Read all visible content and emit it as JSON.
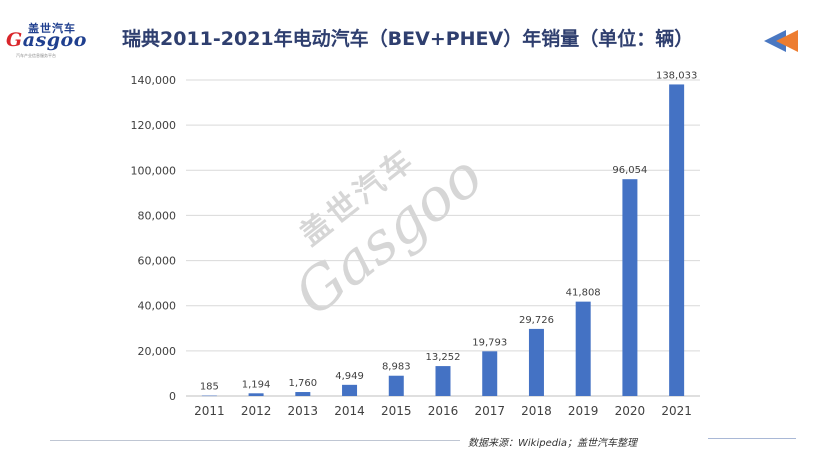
{
  "logo": {
    "cn": "盖世汽车",
    "en_g": "G",
    "en_rest": "asgoo",
    "sub": "汽车产业信息服务平台"
  },
  "header": {
    "title": "瑞典2011-2021年电动汽车（BEV+PHEV）年销量（单位：辆）"
  },
  "watermark": {
    "cn": "盖世汽车",
    "en": "Gasgoo"
  },
  "footer": {
    "source": "数据来源：Wikipedia；盖世汽车整理"
  },
  "colors": {
    "bar": "#4472c4",
    "title": "#2f3f6f",
    "arrow_orange": "#ed7d31",
    "arrow_blue": "#4a78c2"
  },
  "chart_data": {
    "type": "bar",
    "categories": [
      "2011",
      "2012",
      "2013",
      "2014",
      "2015",
      "2016",
      "2017",
      "2018",
      "2019",
      "2020",
      "2021"
    ],
    "values": [
      185,
      1194,
      1760,
      4949,
      8983,
      13252,
      19793,
      29726,
      41808,
      96054,
      138033
    ],
    "value_labels": [
      "185",
      "1,194",
      "1,760",
      "4,949",
      "8,983",
      "13,252",
      "19,793",
      "29,726",
      "41,808",
      "96,054",
      "138,033"
    ],
    "y_ticks": [
      "0",
      "20,000",
      "40,000",
      "60,000",
      "80,000",
      "100,000",
      "120,000",
      "140,000"
    ],
    "y_tick_values": [
      0,
      20000,
      40000,
      60000,
      80000,
      100000,
      120000,
      140000
    ],
    "ylim": [
      0,
      140000
    ],
    "grid": true,
    "title": "瑞典2011-2021年电动汽车（BEV+PHEV）年销量（单位：辆）"
  }
}
